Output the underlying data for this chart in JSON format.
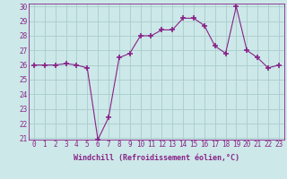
{
  "x": [
    0,
    1,
    2,
    3,
    4,
    5,
    6,
    7,
    8,
    9,
    10,
    11,
    12,
    13,
    14,
    15,
    16,
    17,
    18,
    19,
    20,
    21,
    22,
    23
  ],
  "y": [
    26,
    26,
    26,
    26.1,
    26,
    25.8,
    20.9,
    22.4,
    26.5,
    26.8,
    28,
    28,
    28.4,
    28.4,
    29.2,
    29.2,
    28.7,
    27.3,
    26.8,
    30,
    27,
    26.5,
    25.8,
    26
  ],
  "xlabel": "Windchill (Refroidissement éolien,°C)",
  "ylim": [
    21,
    30
  ],
  "xlim": [
    -0.5,
    23.5
  ],
  "yticks": [
    21,
    22,
    23,
    24,
    25,
    26,
    27,
    28,
    29,
    30
  ],
  "xticks": [
    0,
    1,
    2,
    3,
    4,
    5,
    6,
    7,
    8,
    9,
    10,
    11,
    12,
    13,
    14,
    15,
    16,
    17,
    18,
    19,
    20,
    21,
    22,
    23
  ],
  "line_color": "#882288",
  "marker": "+",
  "marker_size": 4,
  "background_color": "#cce8e8",
  "grid_color": "#aacccc",
  "font_family": "monospace",
  "tick_fontsize": 5.5,
  "xlabel_fontsize": 6.0
}
